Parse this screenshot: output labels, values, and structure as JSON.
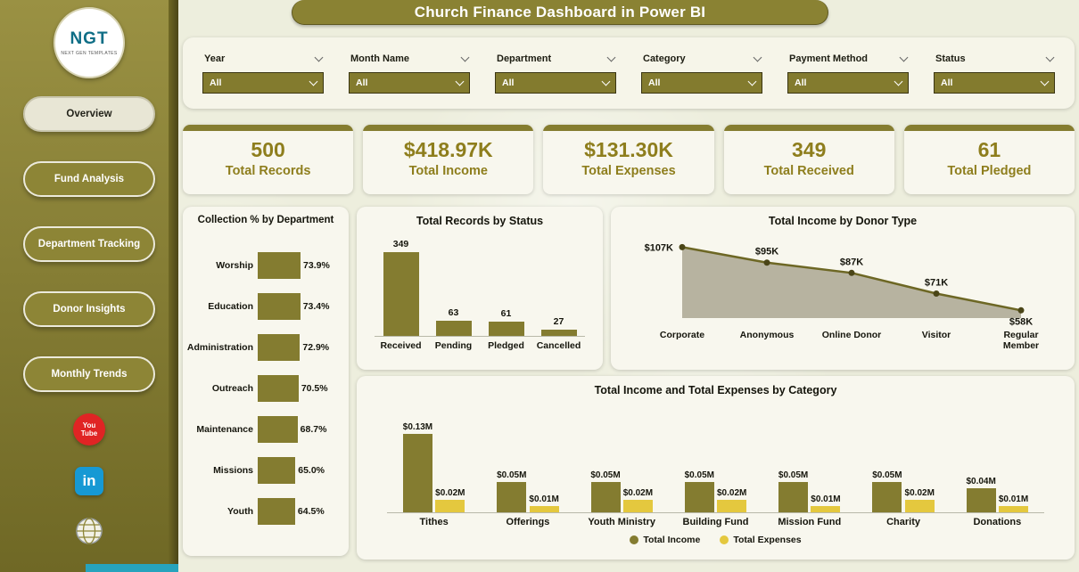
{
  "title": "Church Finance Dashboard in Power BI",
  "colors": {
    "olive": "#847c30",
    "olive_dark": "#6d6724",
    "gold": "#e4c83e",
    "area_fill": "#b7b3a0",
    "dot": "#4a4517"
  },
  "sidebar": {
    "logo": {
      "text": "NGT",
      "subtext": "NEXT GEN TEMPLATES"
    },
    "items": [
      {
        "label": "Overview",
        "active": true
      },
      {
        "label": "Fund Analysis",
        "active": false
      },
      {
        "label": "Department Tracking",
        "active": false
      },
      {
        "label": "Donor Insights",
        "active": false
      },
      {
        "label": "Monthly Trends",
        "active": false
      }
    ],
    "youtube": {
      "line1": "You",
      "line2": "Tube"
    },
    "linkedin": "in"
  },
  "filters": [
    {
      "label": "Year",
      "value": "All"
    },
    {
      "label": "Month Name",
      "value": "All"
    },
    {
      "label": "Department",
      "value": "All"
    },
    {
      "label": "Category",
      "value": "All"
    },
    {
      "label": "Payment Method",
      "value": "All"
    },
    {
      "label": "Status",
      "value": "All"
    }
  ],
  "kpis": [
    {
      "value": "500",
      "label": "Total Records"
    },
    {
      "value": "$418.97K",
      "label": "Total Income"
    },
    {
      "value": "$131.30K",
      "label": "Total Expenses"
    },
    {
      "value": "349",
      "label": "Total Received"
    },
    {
      "value": "61",
      "label": "Total Pledged"
    }
  ],
  "chart_data": [
    {
      "type": "bar",
      "orientation": "horizontal",
      "title": "Collection % by Department",
      "categories": [
        "Worship",
        "Education",
        "Administration",
        "Outreach",
        "Maintenance",
        "Missions",
        "Youth"
      ],
      "values": [
        73.9,
        73.4,
        72.9,
        70.5,
        68.7,
        65.0,
        64.5
      ],
      "labels": [
        "73.9%",
        "73.4%",
        "72.9%",
        "70.5%",
        "68.7%",
        "65.0%",
        "64.5%"
      ],
      "xlim": [
        0,
        80
      ]
    },
    {
      "type": "bar",
      "title": "Total Records by Status",
      "categories": [
        "Received",
        "Pending",
        "Pledged",
        "Cancelled"
      ],
      "values": [
        349,
        63,
        61,
        27
      ],
      "ylim": [
        0,
        360
      ]
    },
    {
      "type": "area",
      "title": "Total Income by Donor Type",
      "categories": [
        "Corporate",
        "Anonymous",
        "Online Donor",
        "Visitor",
        "Regular\nMember"
      ],
      "values": [
        107,
        95,
        87,
        71,
        58
      ],
      "labels": [
        "$107K",
        "$95K",
        "$87K",
        "$71K",
        "$58K"
      ],
      "unit": "K"
    },
    {
      "type": "bar",
      "grouped": true,
      "title": "Total Income and Total Expenses by Category",
      "categories": [
        "Tithes",
        "Offerings",
        "Youth Ministry",
        "Building Fund",
        "Mission Fund",
        "Charity",
        "Donations"
      ],
      "series": [
        {
          "name": "Total Income",
          "values": [
            0.13,
            0.05,
            0.05,
            0.05,
            0.05,
            0.05,
            0.04
          ],
          "labels": [
            "$0.13M",
            "$0.05M",
            "$0.05M",
            "$0.05M",
            "$0.05M",
            "$0.05M",
            "$0.04M"
          ]
        },
        {
          "name": "Total Expenses",
          "values": [
            0.02,
            0.01,
            0.02,
            0.02,
            0.01,
            0.02,
            0.01
          ],
          "labels": [
            "$0.02M",
            "$0.01M",
            "$0.02M",
            "$0.02M",
            "$0.01M",
            "$0.02M",
            "$0.01M"
          ]
        }
      ],
      "legend_position": "bottom"
    }
  ]
}
